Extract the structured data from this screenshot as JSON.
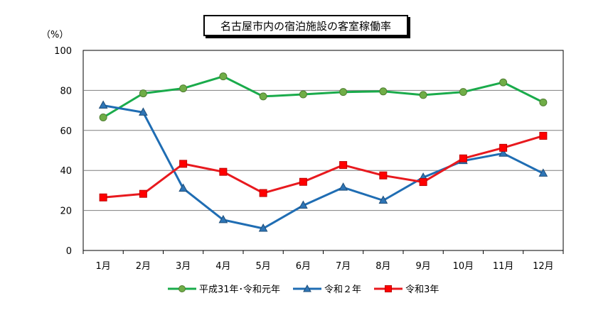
{
  "chart_data": {
    "type": "line",
    "title": "名古屋市内の宿泊施設の客室稼働率",
    "unit": "（%）",
    "categories": [
      "1月",
      "2月",
      "3月",
      "4月",
      "5月",
      "6月",
      "7月",
      "8月",
      "9月",
      "10月",
      "11月",
      "12月"
    ],
    "ylim": [
      0,
      100
    ],
    "yticks": [
      0,
      20,
      40,
      60,
      80,
      100
    ],
    "grid": true,
    "legend_position": "bottom",
    "series": [
      {
        "name": "平成31年･令和元年",
        "color": "#1aab4b",
        "marker": "circle",
        "marker_color": "#70ad47",
        "values": [
          66.5,
          78.5,
          81,
          87,
          77,
          78,
          79.2,
          79.5,
          77.7,
          79.2,
          84,
          74
        ]
      },
      {
        "name": "令和２年",
        "color": "#1f6db3",
        "marker": "triangle",
        "marker_color": "#2e75b6",
        "values": [
          72.5,
          69,
          31,
          15.3,
          11,
          22.5,
          31.5,
          25,
          36.5,
          44.8,
          48.5,
          38.5
        ]
      },
      {
        "name": "令和3年",
        "color": "#e8191e",
        "marker": "square",
        "marker_color": "#ff0000",
        "values": [
          26.5,
          28.3,
          43.3,
          39.3,
          28.7,
          34.3,
          42.7,
          37.5,
          34.2,
          46,
          51.3,
          57.3
        ]
      }
    ]
  }
}
